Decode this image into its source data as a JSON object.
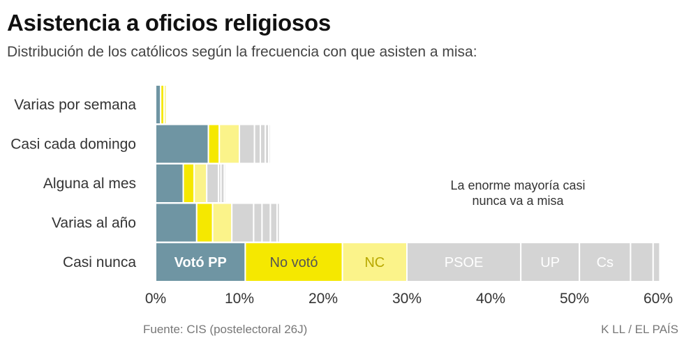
{
  "title": "Asistencia a oficios religiosos",
  "subtitle": "Distribución de los católicos según la frecuencia con que asisten a misa:",
  "source": "Fuente: CIS (postelectoral 26J)",
  "credit": "K LL  /  EL PAÍS",
  "annotation": [
    "La enorme mayoría casi",
    "nunca va a misa"
  ],
  "colors": {
    "pp": "#6f95a3",
    "abstencion": "#f5e800",
    "nc": "#fbf38a",
    "others": "#d4d4d4",
    "axis_text": "#333333"
  },
  "chart_data": {
    "type": "bar",
    "orientation": "horizontal",
    "stacked": true,
    "title": "Asistencia a oficios religiosos",
    "subtitle": "Distribución de los católicos según la frecuencia con que asisten a misa:",
    "categories": [
      "Varias por semana",
      "Casi cada domingo",
      "Alguna al mes",
      "Varias al año",
      "Casi nunca"
    ],
    "xlim": [
      0,
      60
    ],
    "xticks": [
      0,
      10,
      20,
      30,
      40,
      50,
      60
    ],
    "xtick_labels": [
      "0%",
      "10%",
      "20%",
      "30%",
      "40%",
      "50%",
      "60%"
    ],
    "series": [
      {
        "name": "Votó PP",
        "color": "#6f95a3",
        "values": [
          0.6,
          6.3,
          3.3,
          4.9,
          10.7
        ]
      },
      {
        "name": "No votó",
        "color": "#f5e800",
        "values": [
          0.4,
          1.3,
          1.3,
          1.9,
          11.6
        ]
      },
      {
        "name": "NC",
        "color": "#fbf38a",
        "values": [
          0.3,
          2.4,
          1.5,
          2.3,
          7.7
        ]
      },
      {
        "name": "PSOE",
        "color": "#d4d4d4",
        "values": [
          0.0,
          1.8,
          1.4,
          2.6,
          13.6
        ]
      },
      {
        "name": "UP",
        "color": "#d4d4d4",
        "values": [
          0.0,
          0.7,
          0.3,
          1.0,
          7.0
        ]
      },
      {
        "name": "Cs",
        "color": "#d4d4d4",
        "values": [
          0.0,
          0.6,
          0.4,
          1.0,
          6.1
        ]
      },
      {
        "color": "#d4d4d4",
        "values": [
          0.0,
          0.4,
          0.2,
          0.8,
          2.7
        ]
      },
      {
        "color": "#d4d4d4",
        "values": [
          0.0,
          0.2,
          0.1,
          0.3,
          0.8
        ]
      }
    ],
    "segment_labels": {
      "Casi nunca": [
        "Votó PP",
        "No votó",
        "NC",
        "PSOE",
        "UP",
        "Cs",
        "",
        ""
      ]
    },
    "segment_label_colors": [
      "#ffffff",
      "#555555",
      "#b8a800",
      "#ffffff",
      "#ffffff",
      "#ffffff",
      "#ffffff",
      "#ffffff"
    ],
    "segment_label_bold": [
      true,
      false,
      false,
      false,
      false,
      false,
      false,
      false
    ],
    "grid": false,
    "legend": "none"
  }
}
